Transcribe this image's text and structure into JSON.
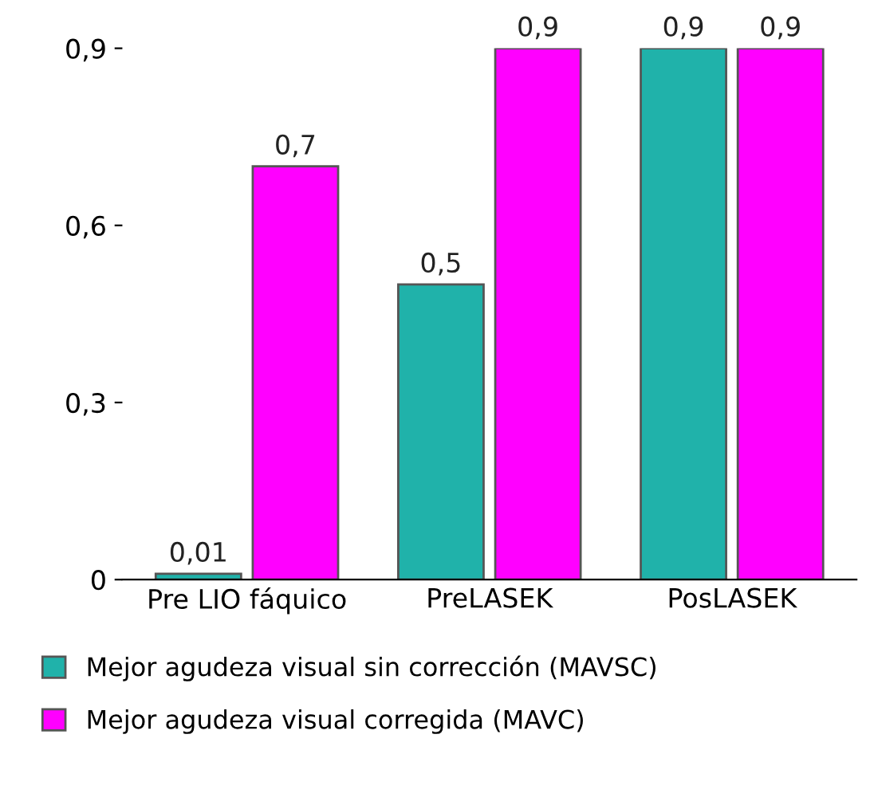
{
  "chart_data": {
    "type": "bar",
    "categories": [
      "Pre LIO fáquico",
      "PreLASEK",
      "PosLASEK"
    ],
    "series": [
      {
        "name": "Mejor agudeza visual sin corrección (MAVSC)",
        "color": "#20b2aa",
        "values": [
          0.01,
          0.5,
          0.9
        ],
        "value_labels": [
          "0,01",
          "0,5",
          "0,9"
        ]
      },
      {
        "name": "Mejor agudeza visual corregida (MAVC)",
        "color": "#ff00ff",
        "values": [
          0.7,
          0.9,
          0.9
        ],
        "value_labels": [
          "0,7",
          "0,9",
          "0,9"
        ]
      }
    ],
    "ylim": [
      0,
      0.9
    ],
    "yticks": [
      {
        "value": 0,
        "label": "0"
      },
      {
        "value": 0.3,
        "label": "0,3"
      },
      {
        "value": 0.6,
        "label": "0,6"
      },
      {
        "value": 0.9,
        "label": "0,9"
      }
    ],
    "grid": false,
    "legend": "bottom"
  }
}
